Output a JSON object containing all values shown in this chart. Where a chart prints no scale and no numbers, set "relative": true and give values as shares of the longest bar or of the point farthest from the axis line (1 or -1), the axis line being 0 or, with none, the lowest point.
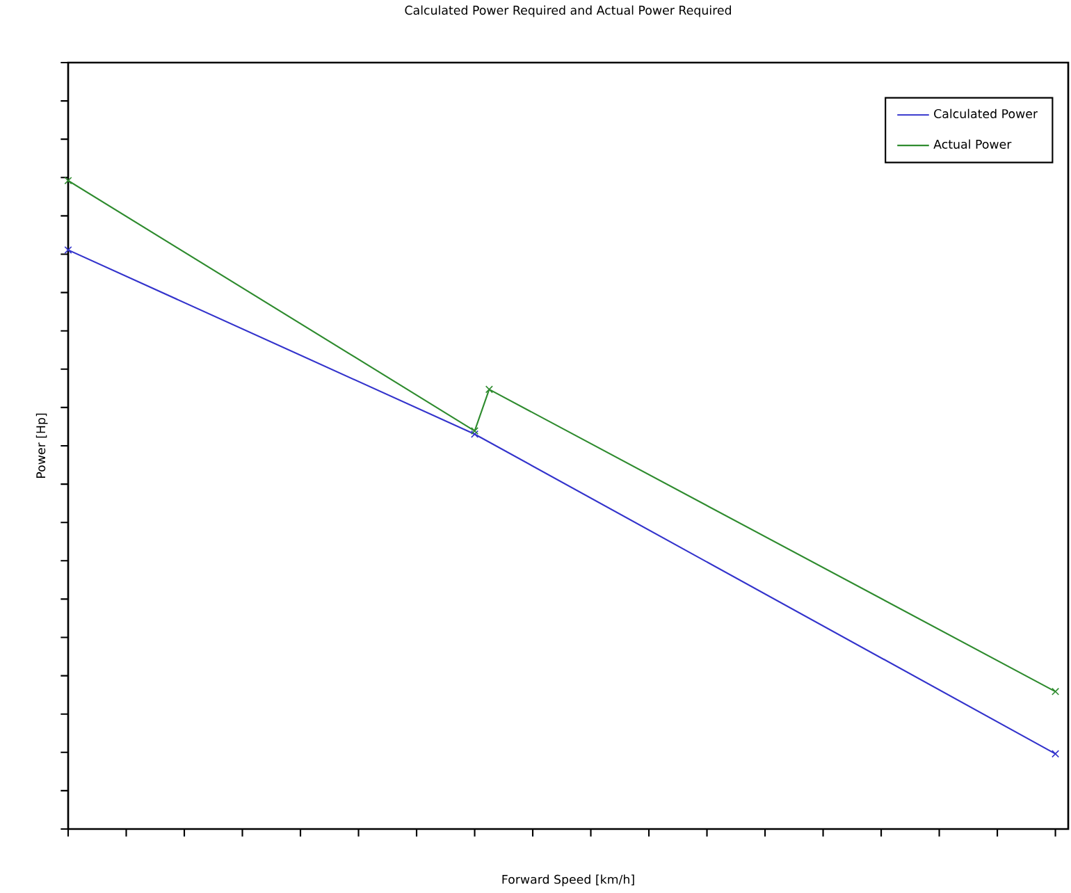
{
  "chart_data": {
    "type": "line",
    "title": "Calculated Power Required and Actual Power Required",
    "xlabel": "Forward Speed [km/h]",
    "ylabel": "Power [Hp]",
    "relative": true,
    "categories": [
      null,
      null,
      null,
      null,
      null,
      null,
      null,
      null,
      null,
      null,
      null,
      null,
      null,
      null,
      null,
      null,
      null,
      null,
      null,
      null,
      null,
      null,
      null,
      null,
      null,
      null,
      null,
      null,
      null,
      null,
      null,
      null,
      null,
      null,
      null,
      null,
      null,
      null,
      null,
      null,
      null,
      null,
      null,
      null,
      null,
      null,
      null,
      null,
      null,
      null,
      null,
      null,
      null,
      null,
      null,
      null,
      null,
      null,
      null,
      null,
      null,
      null,
      null,
      null,
      null,
      null,
      null,
      null,
      null
    ],
    "series": [
      {
        "name": "Calculated Power",
        "color": "#3333cc",
        "values": [
          0.893,
          null,
          null,
          null,
          null,
          null,
          null,
          null,
          null,
          null,
          null,
          null,
          null,
          null,
          null,
          null,
          null,
          null,
          null,
          null,
          null,
          null,
          null,
          null,
          null,
          null,
          null,
          null,
          0.609,
          null,
          null,
          null,
          null,
          null,
          null,
          null,
          null,
          null,
          null,
          null,
          null,
          null,
          null,
          null,
          null,
          null,
          null,
          null,
          null,
          null,
          null,
          null,
          null,
          null,
          null,
          null,
          null,
          null,
          null,
          null,
          null,
          null,
          null,
          null,
          null,
          null,
          null,
          null,
          0.116
        ]
      },
      {
        "name": "Actual Power",
        "color": "#2e8b2e",
        "values": [
          1,
          null,
          null,
          null,
          null,
          null,
          null,
          null,
          null,
          null,
          null,
          null,
          null,
          null,
          null,
          null,
          null,
          null,
          null,
          null,
          null,
          null,
          null,
          null,
          null,
          null,
          null,
          null,
          0.614,
          0.678,
          null,
          null,
          null,
          null,
          null,
          null,
          null,
          null,
          null,
          null,
          null,
          null,
          null,
          null,
          null,
          null,
          null,
          null,
          null,
          null,
          null,
          null,
          null,
          null,
          null,
          null,
          null,
          null,
          null,
          null,
          null,
          null,
          null,
          null,
          null,
          null,
          null,
          null,
          0.212
        ]
      }
    ],
    "marker": "cross",
    "legend": "top right",
    "grid": false
  }
}
